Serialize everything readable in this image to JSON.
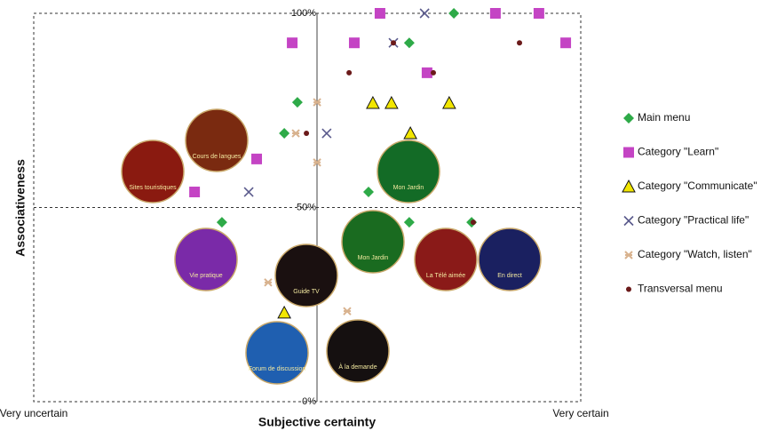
{
  "chart_data": {
    "type": "scatter",
    "xlabel": "Subjective certainty",
    "ylabel": "Associativeness",
    "xlim": [
      -100,
      100
    ],
    "ylim": [
      0,
      100
    ],
    "xticks": [
      {
        "value": -100,
        "label": "Very uncertain"
      },
      {
        "value": 100,
        "label": "Very certain"
      }
    ],
    "yticks": [
      {
        "value": 0,
        "label": "0%"
      },
      {
        "value": 50,
        "label": "50%"
      },
      {
        "value": 100,
        "label": "100%"
      }
    ],
    "legend": "right",
    "series": [
      {
        "name": "Main menu",
        "color": "#2eaa48",
        "marker": "diamond",
        "x": [
          53.6,
          37.3,
          -3.6,
          -8.4,
          22.4,
          -31.2,
          37.3,
          60.1
        ],
        "y": [
          100,
          92.4,
          77.1,
          69.1,
          54.0,
          46.2,
          46.2,
          46.2
        ]
      },
      {
        "name": "Category \"Learn\"",
        "color": "#c444c4",
        "marker": "square",
        "x": [
          26.6,
          68.8,
          84.7,
          -5.5,
          17.2,
          94.5,
          43.8,
          -18.5,
          -41.2
        ],
        "y": [
          100,
          100,
          100,
          92.4,
          92.4,
          92.4,
          84.7,
          62.5,
          54.0
        ]
      },
      {
        "name": "Category \"Communicate\"",
        "color": "#f2e600",
        "marker": "triangle",
        "x": [
          24.0,
          30.8,
          51.9,
          37.7,
          -8.4
        ],
        "y": [
          76.9,
          76.9,
          76.9,
          69.1,
          22.9
        ]
      },
      {
        "name": "Category \"Practical life\"",
        "color": "#5a5a8c",
        "marker": "x",
        "x": [
          42.9,
          31.5,
          7.1,
          -21.4
        ],
        "y": [
          100,
          92.4,
          69.1,
          54.0
        ]
      },
      {
        "name": "Category \"Watch, listen\"",
        "color": "#d8b28e",
        "marker": "asterisk",
        "x": [
          3.6,
          -4.2,
          3.6,
          -14.3,
          14.6
        ],
        "y": [
          77.1,
          69.1,
          61.6,
          30.7,
          23.3
        ]
      },
      {
        "name": "Transversal menu",
        "color": "#6b1a1a",
        "marker": "dot",
        "x": [
          77.6,
          15.3,
          46.1,
          -0.3,
          60.7,
          31.5
        ],
        "y": [
          92.4,
          84.7,
          84.7,
          69.1,
          46.2,
          92.4
        ]
      }
    ],
    "annotations": [
      "Sites touristiques",
      "Cours de langues",
      "Mon Jardin",
      "Mon Jardin",
      "Vie pratique",
      "Guide TV",
      "La Télé aimée",
      "En direct",
      "Forum de discussion",
      "À la demande"
    ]
  }
}
